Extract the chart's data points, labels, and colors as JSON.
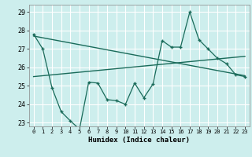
{
  "xlabel": "Humidex (Indice chaleur)",
  "bg_color": "#cdeeed",
  "grid_color": "#ffffff",
  "line_color": "#1a6b5a",
  "xlim": [
    -0.5,
    23.5
  ],
  "ylim": [
    22.8,
    29.4
  ],
  "xticks": [
    0,
    1,
    2,
    3,
    4,
    5,
    6,
    7,
    8,
    9,
    10,
    11,
    12,
    13,
    14,
    15,
    16,
    17,
    18,
    19,
    20,
    21,
    22,
    23
  ],
  "yticks": [
    23,
    24,
    25,
    26,
    27,
    28,
    29
  ],
  "data_x": [
    0,
    1,
    2,
    3,
    4,
    5,
    6,
    7,
    8,
    9,
    10,
    11,
    12,
    13,
    14,
    15,
    16,
    17,
    18,
    19,
    20,
    21,
    22,
    23
  ],
  "data_y": [
    27.8,
    27.0,
    24.9,
    23.6,
    23.1,
    22.65,
    25.2,
    25.15,
    24.25,
    24.2,
    24.0,
    25.15,
    24.35,
    25.1,
    27.45,
    27.1,
    27.1,
    29.0,
    27.5,
    27.0,
    26.5,
    26.2,
    25.6,
    25.5
  ],
  "trend1_x": [
    0,
    23
  ],
  "trend1_y": [
    25.5,
    26.6
  ],
  "trend2_x": [
    0,
    23
  ],
  "trend2_y": [
    27.7,
    25.55
  ]
}
